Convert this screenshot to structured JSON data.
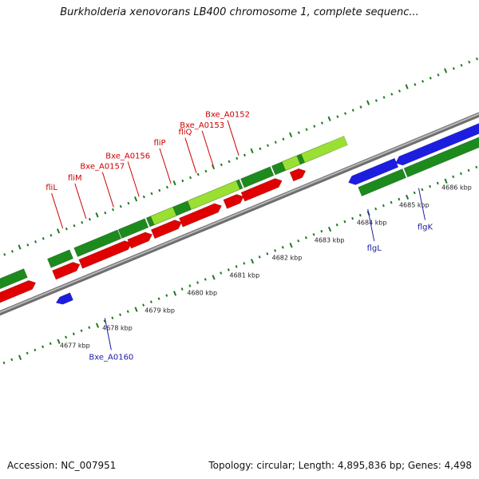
{
  "title": "Burkholderia xenovorans LB400 chromosome 1, complete sequenc...",
  "footer": {
    "accession": "Accession: NC_007951",
    "summary": "Topology: circular; Length: 4,895,836 bp; Genes: 4,498"
  },
  "colors": {
    "forward_cds": "#e00000",
    "reverse_cds": "#1d1de0",
    "forward_gene": "#1d8a1d",
    "reverse_gene": "#1d8a1d",
    "highlight_gene": "#99e033",
    "olive_gene": "#6f8f2a",
    "backbone": "#888888",
    "forward_label": "#cc0000",
    "reverse_label": "#1a1aaa"
  },
  "scale_labels": [
    "4677 kbp",
    "4678 kbp",
    "4679 kbp",
    "4680 kbp",
    "4681 kbp",
    "4682 kbp",
    "4683 kbp",
    "4684 kbp",
    "4685 kbp",
    "4686 kbp"
  ],
  "forward_labels": [
    {
      "text": "fliL",
      "pos_kbp": 4677.75
    },
    {
      "text": "fliM",
      "pos_kbp": 4678.3
    },
    {
      "text": "Bxe_A0157",
      "pos_kbp": 4678.95
    },
    {
      "text": "Bxe_A0156",
      "pos_kbp": 4679.55
    },
    {
      "text": "fliP",
      "pos_kbp": 4680.3
    },
    {
      "text": "fliQ",
      "pos_kbp": 4680.9
    },
    {
      "text": "Bxe_A0153",
      "pos_kbp": 4681.3
    },
    {
      "text": "Bxe_A0152",
      "pos_kbp": 4681.9
    }
  ],
  "reverse_labels": [
    {
      "text": "Bxe_A0160",
      "pos_kbp": 4677.85
    },
    {
      "text": "flgL",
      "pos_kbp": 4684.05
    },
    {
      "text": "flgK",
      "pos_kbp": 4685.25
    }
  ]
}
